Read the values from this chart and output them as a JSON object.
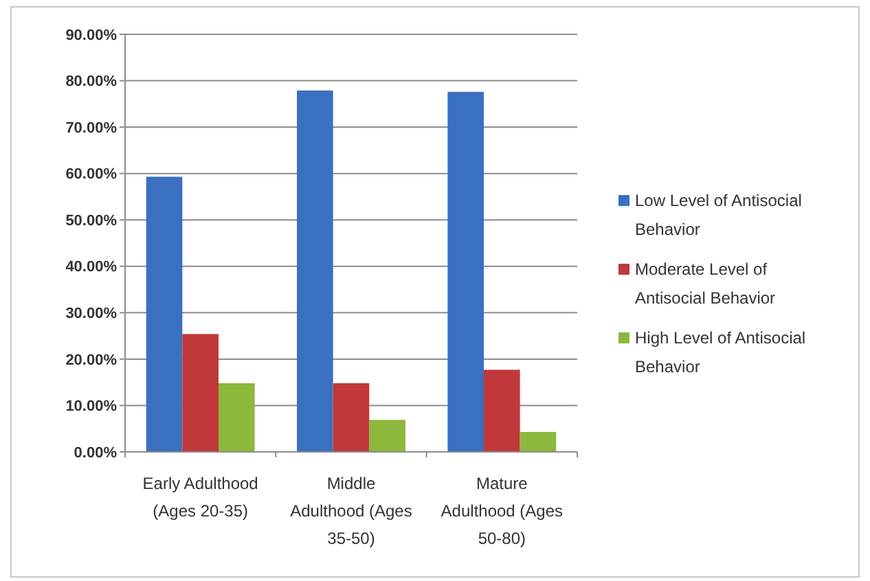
{
  "chart_data": {
    "type": "bar",
    "categories": [
      "Early Adulthood (Ages 20-35)",
      "Middle Adulthood (Ages 35-50)",
      "Mature Adulthood (Ages 50-80)"
    ],
    "series": [
      {
        "name": "Low Level of Antisocial Behavior",
        "color": "#3a70c0",
        "values": [
          59.3,
          77.9,
          77.6
        ]
      },
      {
        "name": "Moderate Level of Antisocial Behavior",
        "color": "#c0383a",
        "values": [
          25.4,
          14.8,
          17.7
        ]
      },
      {
        "name": "High Level of Antisocial Behavior",
        "color": "#8cb83c",
        "values": [
          14.8,
          6.9,
          4.3
        ]
      }
    ],
    "ylim": [
      0,
      90
    ],
    "yticks": [
      {
        "value": 0,
        "label": "0.00%"
      },
      {
        "value": 10,
        "label": "10.00%"
      },
      {
        "value": 20,
        "label": "20.00%"
      },
      {
        "value": 30,
        "label": "30.00%"
      },
      {
        "value": 40,
        "label": "40.00%"
      },
      {
        "value": 50,
        "label": "50.00%"
      },
      {
        "value": 60,
        "label": "60.00%"
      },
      {
        "value": 70,
        "label": "70.00%"
      },
      {
        "value": 80,
        "label": "80.00%"
      },
      {
        "value": 90,
        "label": "90.00%"
      }
    ],
    "grid": "y",
    "legend": "right"
  }
}
